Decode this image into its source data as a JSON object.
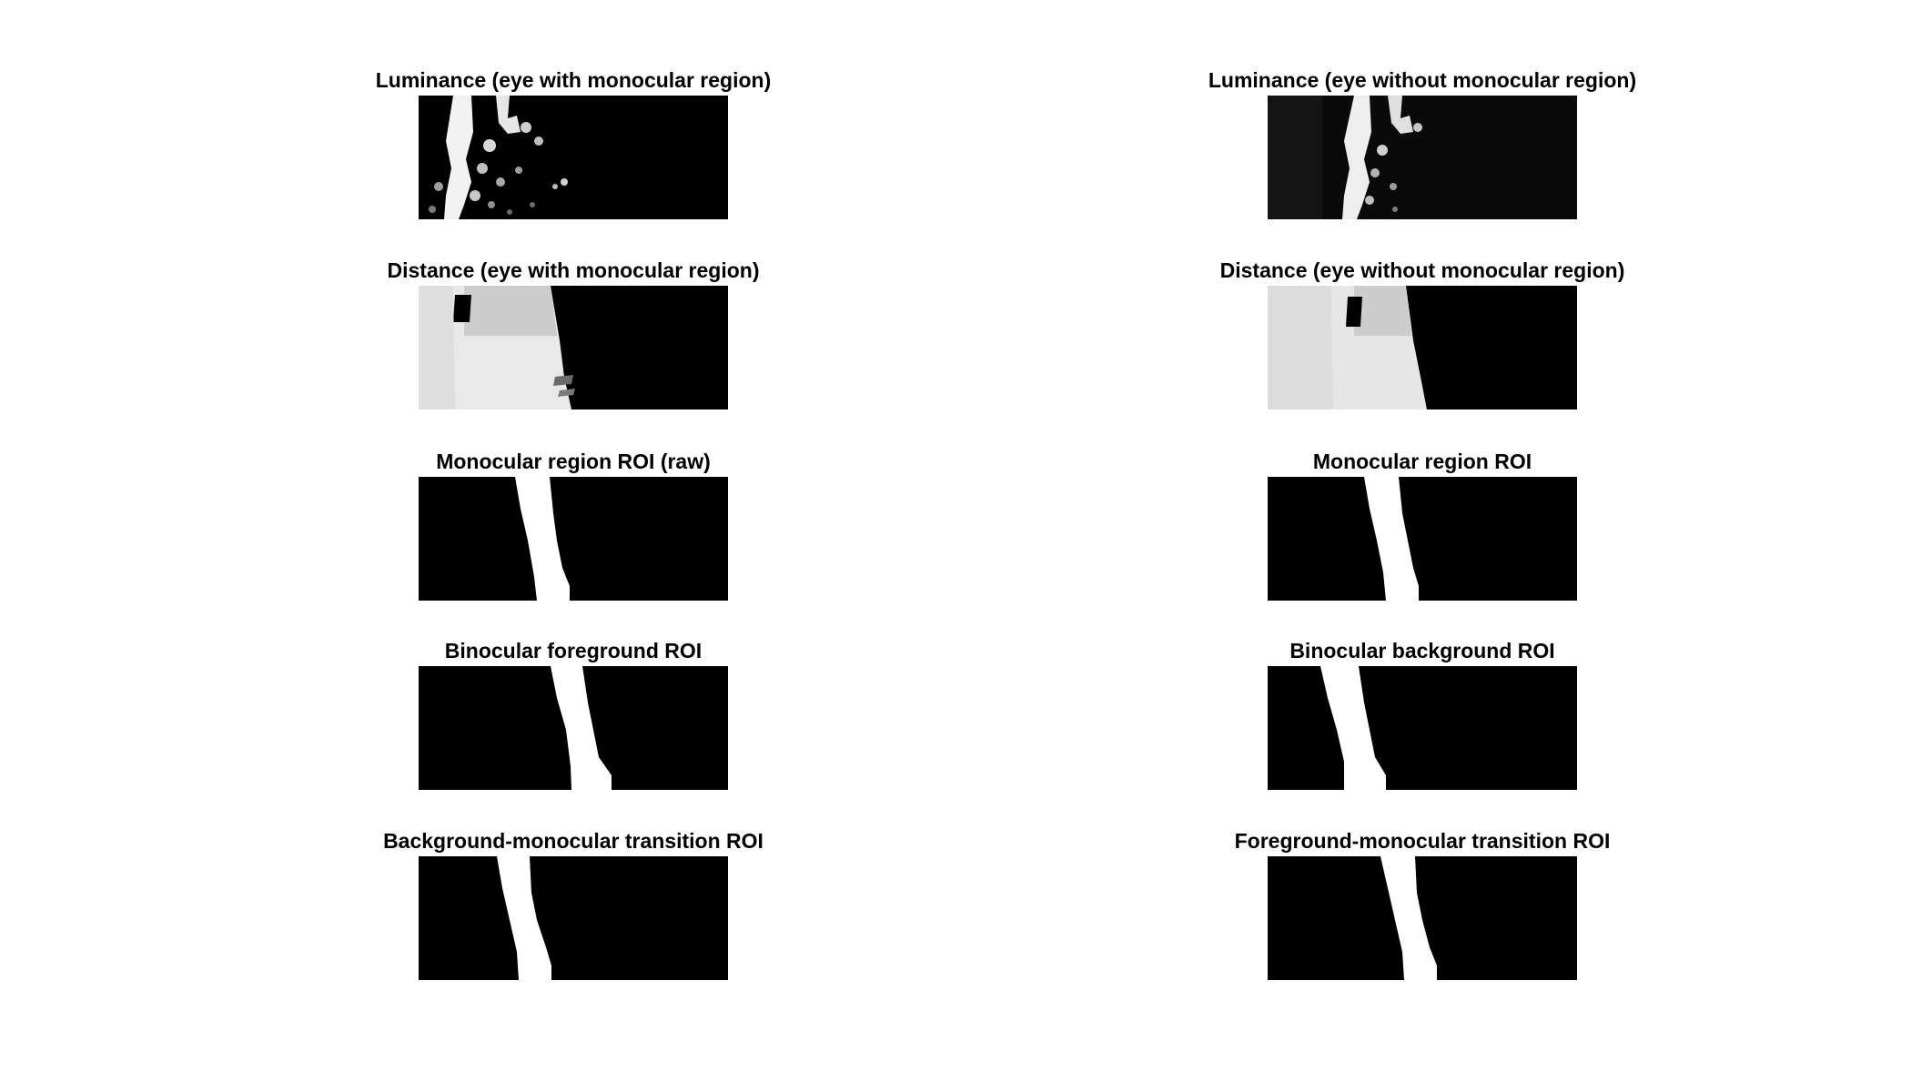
{
  "panels": [
    {
      "title": "Luminance (eye with monocular region)",
      "kind": "luminance"
    },
    {
      "title": "Luminance (eye without monocular region)",
      "kind": "luminance"
    },
    {
      "title": "Distance (eye with monocular region)",
      "kind": "distance"
    },
    {
      "title": "Distance (eye without monocular region)",
      "kind": "distance"
    },
    {
      "title": "Monocular region ROI (raw)",
      "kind": "mask"
    },
    {
      "title": "Monocular region ROI",
      "kind": "mask"
    },
    {
      "title": "Binocular foreground ROI",
      "kind": "mask"
    },
    {
      "title": "Binocular background ROI",
      "kind": "mask"
    },
    {
      "title": "Background-monocular transition ROI",
      "kind": "mask"
    },
    {
      "title": "Foreground-monocular transition ROI",
      "kind": "mask"
    }
  ],
  "colors": {
    "background": "#ffffff",
    "panel": "#000000",
    "mask": "#ffffff"
  }
}
